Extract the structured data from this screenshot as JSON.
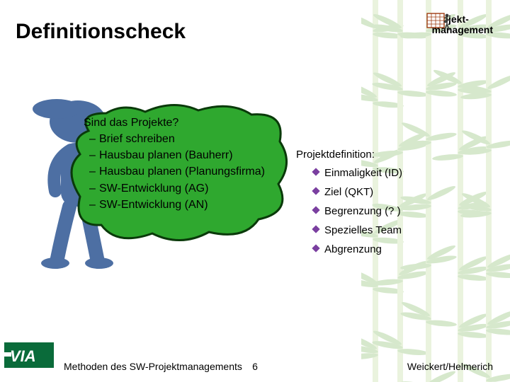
{
  "slide": {
    "title": "Definitionscheck",
    "brand_line1": "Projekt-",
    "brand_line2": "management"
  },
  "question": {
    "title": "Sind das Projekte?",
    "items": [
      "Brief schreiben",
      "Hausbau planen (Bauherr)",
      "Hausbau planen (Planungsfirma)",
      "SW-Entwicklung (AG)",
      "SW-Entwicklung (AN)"
    ]
  },
  "definition": {
    "title": "Projektdefinition:",
    "items": [
      "Einmaligkeit (ID)",
      "Ziel (QKT)",
      "Begrenzung (? )",
      "Spezielles Team",
      "Abgrenzung"
    ],
    "bullet_color": "#7a3fa0"
  },
  "footer": {
    "left": "Methoden des SW-Projektmanagements",
    "page": "6",
    "right": "Weickert/Helmerich"
  },
  "colors": {
    "blob_fill": "#2fa82f",
    "blob_stroke": "#0a3a0a",
    "figure_fill": "#4d6fa3",
    "bamboo_leaf": "#6fae4a",
    "bamboo_stalk": "#b7d68a",
    "logo_bg": "#0a6b3a",
    "logo_fg": "#ffffff",
    "brand_grid": "#9e3b12"
  }
}
